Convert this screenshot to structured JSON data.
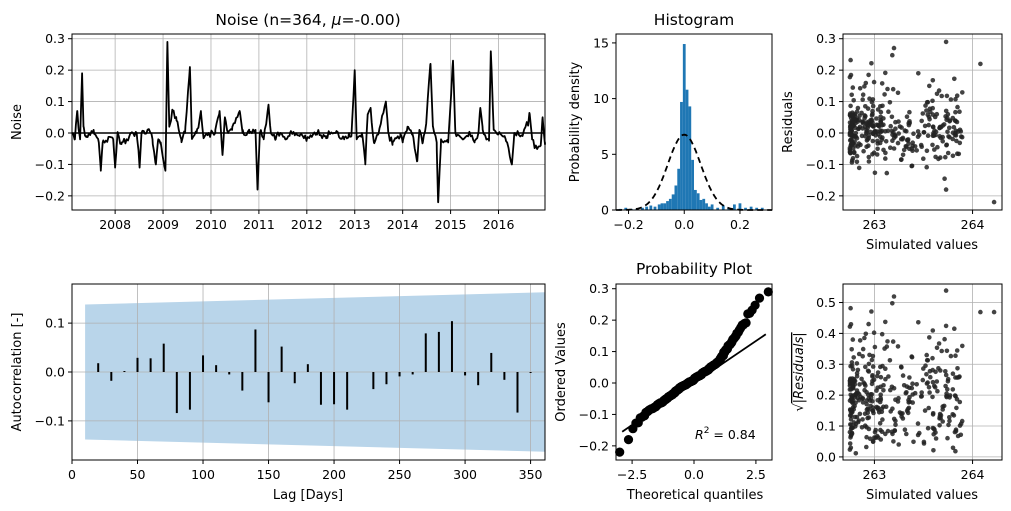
{
  "colors": {
    "line": "#000000",
    "hist": "#1f77b4",
    "ci_band": "#b9d5ea",
    "grid": "#b0b0b0",
    "scatter": "#222222"
  },
  "chart_data": [
    {
      "id": "noise",
      "type": "line",
      "title": "Noise (n=364, μ=-0.00)",
      "title_prefix": "Noise (n=364, ",
      "title_mu": "μ",
      "title_suffix": "=-0.00)",
      "xlabel": "",
      "ylabel": "Noise",
      "xlim": [
        2007.1,
        2016.97
      ],
      "ylim": [
        -0.245,
        0.315
      ],
      "xticks": [
        2008,
        2009,
        2010,
        2011,
        2012,
        2013,
        2014,
        2015,
        2016
      ],
      "yticks": [
        -0.2,
        -0.1,
        0.0,
        0.1,
        0.2,
        0.3
      ],
      "ytick_labels": [
        "−0.2",
        "−0.1",
        "0.0",
        "0.1",
        "0.2",
        "0.3"
      ],
      "grid": true,
      "zero_line": true,
      "anchors": [
        [
          2007.1,
          0.0
        ],
        [
          2007.16,
          -0.02
        ],
        [
          2007.21,
          0.07
        ],
        [
          2007.24,
          0.01
        ],
        [
          2007.27,
          -0.02
        ],
        [
          2007.31,
          0.19
        ],
        [
          2007.34,
          0.02
        ],
        [
          2007.4,
          -0.01
        ],
        [
          2007.55,
          0.01
        ],
        [
          2007.66,
          -0.03
        ],
        [
          2007.7,
          -0.12
        ],
        [
          2007.74,
          -0.03
        ],
        [
          2007.85,
          -0.02
        ],
        [
          2007.96,
          -0.02
        ],
        [
          2008.0,
          -0.11
        ],
        [
          2008.05,
          0.0
        ],
        [
          2008.14,
          -0.03
        ],
        [
          2008.24,
          -0.02
        ],
        [
          2008.32,
          0.0
        ],
        [
          2008.45,
          0.0
        ],
        [
          2008.51,
          -0.11
        ],
        [
          2008.55,
          0.0
        ],
        [
          2008.7,
          0.01
        ],
        [
          2008.78,
          -0.02
        ],
        [
          2008.85,
          -0.1
        ],
        [
          2008.9,
          -0.02
        ],
        [
          2008.95,
          -0.03
        ],
        [
          2009.05,
          -0.12
        ],
        [
          2009.09,
          0.29
        ],
        [
          2009.13,
          0.02
        ],
        [
          2009.2,
          0.07
        ],
        [
          2009.28,
          0.04
        ],
        [
          2009.38,
          -0.02
        ],
        [
          2009.46,
          0.0
        ],
        [
          2009.56,
          0.21
        ],
        [
          2009.6,
          -0.01
        ],
        [
          2009.7,
          0.0
        ],
        [
          2009.79,
          0.07
        ],
        [
          2009.84,
          -0.01
        ],
        [
          2009.95,
          0.0
        ],
        [
          2010.09,
          0.0
        ],
        [
          2010.18,
          0.07
        ],
        [
          2010.24,
          -0.07
        ],
        [
          2010.29,
          0.05
        ],
        [
          2010.36,
          0.0
        ],
        [
          2010.44,
          0.01
        ],
        [
          2010.6,
          0.07
        ],
        [
          2010.66,
          0.0
        ],
        [
          2010.8,
          0.0
        ],
        [
          2010.93,
          0.01
        ],
        [
          2010.97,
          -0.18
        ],
        [
          2011.02,
          0.0
        ],
        [
          2011.1,
          -0.02
        ],
        [
          2011.2,
          0.09
        ],
        [
          2011.25,
          0.0
        ],
        [
          2011.35,
          -0.02
        ],
        [
          2011.45,
          0.0
        ],
        [
          2011.55,
          -0.02
        ],
        [
          2011.65,
          0.0
        ],
        [
          2011.85,
          -0.01
        ],
        [
          2012.0,
          -0.02
        ],
        [
          2012.2,
          0.0
        ],
        [
          2012.4,
          -0.01
        ],
        [
          2012.6,
          0.0
        ],
        [
          2012.78,
          -0.02
        ],
        [
          2012.88,
          0.0
        ],
        [
          2012.93,
          -0.01
        ],
        [
          2013.0,
          0.2
        ],
        [
          2013.04,
          -0.02
        ],
        [
          2013.15,
          0.0
        ],
        [
          2013.22,
          -0.1
        ],
        [
          2013.27,
          0.06
        ],
        [
          2013.33,
          0.08
        ],
        [
          2013.4,
          -0.03
        ],
        [
          2013.5,
          0.0
        ],
        [
          2013.65,
          0.1
        ],
        [
          2013.7,
          0.0
        ],
        [
          2013.79,
          -0.03
        ],
        [
          2013.95,
          -0.01
        ],
        [
          2014.0,
          -0.03
        ],
        [
          2014.1,
          0.02
        ],
        [
          2014.2,
          0.0
        ],
        [
          2014.3,
          -0.09
        ],
        [
          2014.35,
          0.01
        ],
        [
          2014.42,
          -0.03
        ],
        [
          2014.49,
          0.03
        ],
        [
          2014.58,
          0.22
        ],
        [
          2014.63,
          0.02
        ],
        [
          2014.71,
          -0.03
        ],
        [
          2014.74,
          -0.22
        ],
        [
          2014.8,
          -0.02
        ],
        [
          2014.95,
          -0.03
        ],
        [
          2015.05,
          0.23
        ],
        [
          2015.1,
          0.0
        ],
        [
          2015.25,
          -0.02
        ],
        [
          2015.4,
          0.0
        ],
        [
          2015.5,
          -0.03
        ],
        [
          2015.58,
          0.0
        ],
        [
          2015.62,
          0.08
        ],
        [
          2015.67,
          0.01
        ],
        [
          2015.8,
          -0.02
        ],
        [
          2015.84,
          0.26
        ],
        [
          2015.9,
          0.01
        ],
        [
          2016.02,
          0.0
        ],
        [
          2016.15,
          -0.02
        ],
        [
          2016.28,
          -0.1
        ],
        [
          2016.33,
          0.0
        ],
        [
          2016.5,
          -0.01
        ],
        [
          2016.65,
          0.06
        ],
        [
          2016.7,
          -0.02
        ],
        [
          2016.8,
          -0.05
        ],
        [
          2016.88,
          -0.04
        ],
        [
          2016.92,
          0.05
        ],
        [
          2016.97,
          -0.03
        ]
      ]
    },
    {
      "id": "histogram",
      "type": "histogram",
      "title": "Histogram",
      "xlabel": "",
      "ylabel": "Probability density",
      "xlim": [
        -0.245,
        0.315
      ],
      "ylim": [
        0,
        15.8
      ],
      "xticks": [
        -0.2,
        0.0,
        0.2
      ],
      "xtick_labels": [
        "−0.2",
        "0.0",
        "0.2"
      ],
      "yticks": [
        0,
        5,
        10,
        15
      ],
      "grid": false,
      "bins": [
        [
          -0.23,
          0.1
        ],
        [
          -0.21,
          0.2
        ],
        [
          -0.19,
          0.1
        ],
        [
          -0.17,
          0.1
        ],
        [
          -0.15,
          0.2
        ],
        [
          -0.135,
          0.3
        ],
        [
          -0.12,
          0.4
        ],
        [
          -0.105,
          0.3
        ],
        [
          -0.09,
          0.5
        ],
        [
          -0.08,
          0.6
        ],
        [
          -0.07,
          0.6
        ],
        [
          -0.06,
          0.8
        ],
        [
          -0.05,
          1.0
        ],
        [
          -0.04,
          1.4
        ],
        [
          -0.03,
          2.2
        ],
        [
          -0.02,
          3.7
        ],
        [
          -0.01,
          9.7
        ],
        [
          0.0,
          14.9
        ],
        [
          0.01,
          10.8
        ],
        [
          0.02,
          9.3
        ],
        [
          0.03,
          4.5
        ],
        [
          0.04,
          1.8
        ],
        [
          0.05,
          1.5
        ],
        [
          0.06,
          0.9
        ],
        [
          0.07,
          1.0
        ],
        [
          0.08,
          0.6
        ],
        [
          0.09,
          0.3
        ],
        [
          0.1,
          0.5
        ],
        [
          0.12,
          0.2
        ],
        [
          0.14,
          0.4
        ],
        [
          0.16,
          0.2
        ],
        [
          0.18,
          0.5
        ],
        [
          0.2,
          0.6
        ],
        [
          0.22,
          0.2
        ],
        [
          0.24,
          0.3
        ],
        [
          0.26,
          0.2
        ],
        [
          0.28,
          0.2
        ]
      ],
      "bin_width": 0.01,
      "normal_fit": {
        "mean": 0.0,
        "std": 0.059,
        "style": "dashed"
      }
    },
    {
      "id": "residuals-vs-simulated",
      "type": "scatter",
      "title": "",
      "xlabel": "Simulated values",
      "ylabel": "Residuals",
      "xlim": [
        262.68,
        264.3
      ],
      "ylim": [
        -0.245,
        0.315
      ],
      "xticks": [
        263,
        264
      ],
      "yticks": [
        -0.2,
        -0.1,
        0.0,
        0.1,
        0.2,
        0.3
      ],
      "ytick_labels": [
        "−0.2",
        "−0.1",
        "0.0",
        "0.1",
        "0.2",
        "0.3"
      ],
      "grid": true,
      "n_points": 364,
      "notable_points": [
        [
          264.22,
          -0.22
        ],
        [
          263.73,
          -0.18
        ],
        [
          264.08,
          0.22
        ],
        [
          263.73,
          0.29
        ],
        [
          263.2,
          0.27
        ]
      ]
    },
    {
      "id": "autocorrelation",
      "type": "bar",
      "title": "",
      "xlabel": "Lag [Days]",
      "ylabel": "Autocorrelation [-]",
      "xlim": [
        0,
        361
      ],
      "ylim": [
        -0.18,
        0.18
      ],
      "xticks": [
        0,
        50,
        100,
        150,
        200,
        250,
        300,
        350
      ],
      "yticks": [
        -0.1,
        0.0,
        0.1
      ],
      "ytick_labels": [
        "−0.1",
        "0.0",
        "0.1"
      ],
      "grid": true,
      "lags": [
        20,
        30,
        40,
        50,
        60,
        70,
        80,
        90,
        100,
        110,
        120,
        130,
        140,
        150,
        160,
        170,
        180,
        190,
        200,
        210,
        220,
        230,
        240,
        250,
        260,
        270,
        280,
        290,
        300,
        310,
        320,
        330,
        340,
        350,
        360
      ],
      "values": [
        0.018,
        -0.018,
        0.002,
        0.029,
        0.028,
        0.058,
        -0.084,
        -0.077,
        0.034,
        0.014,
        -0.005,
        -0.038,
        0.087,
        -0.062,
        0.052,
        -0.023,
        0.016,
        -0.067,
        -0.066,
        -0.077,
        0.0,
        -0.035,
        -0.025,
        -0.009,
        -0.005,
        0.079,
        0.082,
        0.104,
        -0.007,
        -0.027,
        0.039,
        -0.016,
        -0.083,
        -0.002,
        0.0
      ],
      "confidence_band": {
        "x": [
          10,
          361
        ],
        "upper": [
          0.138,
          0.163
        ],
        "lower": [
          -0.138,
          -0.163
        ]
      }
    },
    {
      "id": "probability-plot",
      "type": "scatter",
      "title": "Probability Plot",
      "xlabel": "Theoretical quantiles",
      "ylabel": "Ordered Values",
      "xlim": [
        -3.15,
        3.15
      ],
      "ylim": [
        -0.245,
        0.315
      ],
      "xticks": [
        -2.5,
        0.0,
        2.5
      ],
      "xtick_labels": [
        "−2.5",
        "0.0",
        "2.5"
      ],
      "yticks": [
        -0.2,
        -0.1,
        0.0,
        0.1,
        0.2,
        0.3
      ],
      "ytick_labels": [
        "−0.2",
        "−0.1",
        "0.0",
        "0.1",
        "0.2",
        "0.3"
      ],
      "grid": false,
      "n_points": 364,
      "fit_line": {
        "x": [
          -2.9,
          2.9
        ],
        "y": [
          -0.155,
          0.155
        ]
      },
      "annotation": "R² = 0.84",
      "annotation_prefix": "R",
      "annotation_sup": "2",
      "annotation_suffix": " = 0.84"
    },
    {
      "id": "sqrt-residuals-vs-simulated",
      "type": "scatter",
      "title": "",
      "xlabel": "Simulated values",
      "ylabel": "√|Residuals|",
      "ylabel_root": "√",
      "ylabel_inner": "|Residuals|",
      "xlim": [
        262.68,
        264.3
      ],
      "ylim": [
        -0.01,
        0.56
      ],
      "xticks": [
        263,
        264
      ],
      "yticks": [
        0.0,
        0.1,
        0.2,
        0.3,
        0.4,
        0.5
      ],
      "grid": true,
      "n_points": 364
    }
  ]
}
